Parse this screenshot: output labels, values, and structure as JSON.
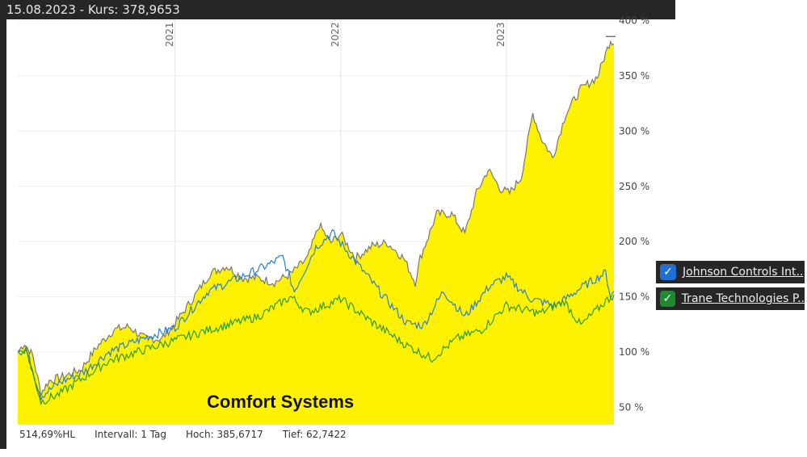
{
  "header": {
    "text": "15.08.2023  -  Kurs: 378,9653"
  },
  "footer": {
    "range": "514,69%HL",
    "interval": "Intervall: 1 Tag",
    "high": "Hoch: 385,6717",
    "low": "Tief: 62,7422"
  },
  "legend": [
    {
      "label": "Johnson Controls Int..",
      "color": "#1f6fd6",
      "checked": true
    },
    {
      "label": "Trane Technologies P..",
      "color": "#1e8a2e",
      "checked": true
    }
  ],
  "chart_data": {
    "type": "line",
    "title": "Comfort Systems",
    "ylabel": "%",
    "ylim": [
      40,
      400
    ],
    "xlim": [
      2020.05,
      2023.65
    ],
    "y_ticks": [
      "50 %",
      "100 %",
      "150 %",
      "200 %",
      "250 %",
      "300 %",
      "350 %",
      "400 %"
    ],
    "y_tick_values": [
      50,
      100,
      150,
      200,
      250,
      300,
      350,
      400
    ],
    "x_ticks": [
      "2021",
      "2022",
      "2023"
    ],
    "x_tick_values": [
      2021,
      2022,
      2023
    ],
    "grid": true,
    "series": [
      {
        "name": "Comfort Systems",
        "color": "#fff200",
        "line": "#777777",
        "fill": true,
        "x": [
          2020.05,
          2020.09,
          2020.14,
          2020.19,
          2020.24,
          2020.33,
          2020.43,
          2020.53,
          2020.63,
          2020.72,
          2020.82,
          2020.92,
          2021.02,
          2021.11,
          2021.21,
          2021.31,
          2021.41,
          2021.5,
          2021.6,
          2021.7,
          2021.8,
          2021.87,
          2021.94,
          2022.0,
          2022.09,
          2022.19,
          2022.28,
          2022.38,
          2022.45,
          2022.48,
          2022.58,
          2022.67,
          2022.75,
          2022.82,
          2022.89,
          2022.97,
          2023.02,
          2023.09,
          2023.16,
          2023.21,
          2023.28,
          2023.36,
          2023.45,
          2023.55,
          2023.63,
          2023.65
        ],
        "y": [
          100,
          108,
          97,
          63,
          74,
          78,
          84,
          105,
          120,
          123,
          112,
          112,
          130,
          149,
          171,
          178,
          167,
          167,
          163,
          171,
          185,
          215,
          199,
          207,
          185,
          196,
          199,
          185,
          163,
          185,
          225,
          225,
          207,
          244,
          265,
          247,
          244,
          258,
          316,
          294,
          276,
          316,
          338,
          349,
          383,
          379
        ]
      },
      {
        "name": "Johnson Controls Int..",
        "color": "#2a7fd0",
        "x": [
          2020.05,
          2020.1,
          2020.19,
          2020.3,
          2020.45,
          2020.6,
          2020.8,
          2021.0,
          2021.2,
          2021.4,
          2021.55,
          2021.65,
          2021.72,
          2021.85,
          2021.95,
          2022.1,
          2022.25,
          2022.4,
          2022.5,
          2022.62,
          2022.75,
          2022.9,
          2023.0,
          2023.15,
          2023.3,
          2023.45,
          2023.6,
          2023.63,
          2023.65
        ],
        "y": [
          100,
          102,
          60,
          72,
          82,
          100,
          112,
          122,
          155,
          168,
          178,
          186,
          155,
          195,
          208,
          180,
          152,
          126,
          124,
          155,
          132,
          160,
          168,
          148,
          142,
          158,
          172,
          150,
          155
        ]
      },
      {
        "name": "Trane Technologies P..",
        "color": "#2e9a2e",
        "x": [
          2020.05,
          2020.1,
          2020.19,
          2020.3,
          2020.4,
          2020.6,
          2020.9,
          2021.2,
          2021.5,
          2021.7,
          2021.8,
          2022.0,
          2022.2,
          2022.4,
          2022.55,
          2022.7,
          2022.85,
          2023.0,
          2023.2,
          2023.35,
          2023.45,
          2023.6,
          2023.65
        ],
        "y": [
          100,
          103,
          55,
          62,
          72,
          92,
          106,
          120,
          132,
          150,
          136,
          148,
          126,
          106,
          94,
          112,
          120,
          142,
          135,
          146,
          124,
          146,
          152
        ]
      }
    ]
  }
}
